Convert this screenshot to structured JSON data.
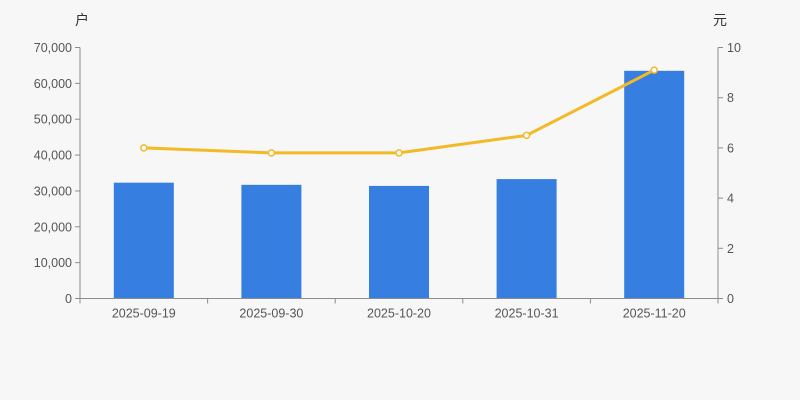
{
  "chart_data": {
    "type": "combo",
    "title": "",
    "categories": [
      "2025-09-19",
      "2025-09-30",
      "2025-10-20",
      "2025-10-31",
      "2025-11-20"
    ],
    "series": [
      {
        "type": "bar",
        "axis": "left",
        "values": [
          32300,
          31700,
          31400,
          33300,
          63500
        ]
      },
      {
        "type": "line",
        "axis": "right",
        "values": [
          6.0,
          5.8,
          5.8,
          6.5,
          9.1
        ]
      }
    ],
    "left_axis": {
      "label": "户",
      "min": 0,
      "max": 70000,
      "tick_step": 10000
    },
    "right_axis": {
      "label": "元",
      "min": 0,
      "max": 10,
      "tick_step": 2
    },
    "grid": false,
    "legend": false
  },
  "colors": {
    "bar": "#377ee1",
    "line": "#f3b926",
    "marker_fill": "#ffffff",
    "axis_line": "#8c8c8c",
    "tick_text": "#555555",
    "axis_title": "#333333",
    "background": "#f7f7f7"
  }
}
